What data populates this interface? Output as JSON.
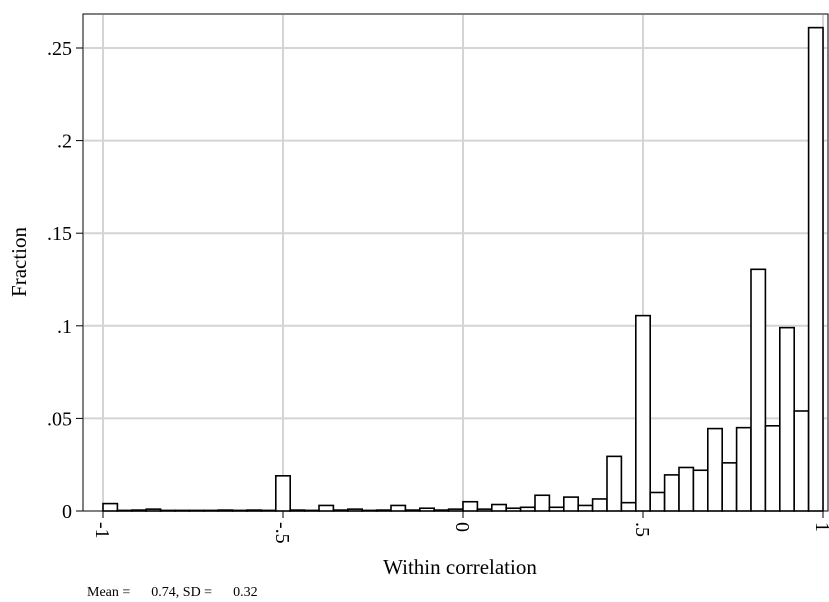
{
  "chart_data": {
    "type": "bar",
    "xlabel": "Within correlation",
    "ylabel": "Fraction",
    "xlim": [
      -1,
      1
    ],
    "ylim": [
      0,
      0.25
    ],
    "x_ticks": [
      {
        "value": -1,
        "label": "-1"
      },
      {
        "value": -0.5,
        "label": "-.5"
      },
      {
        "value": 0,
        "label": "0"
      },
      {
        "value": 0.5,
        "label": ".5"
      },
      {
        "value": 1,
        "label": "1"
      }
    ],
    "y_ticks": [
      {
        "value": 0,
        "label": "0"
      },
      {
        "value": 0.05,
        "label": ".05"
      },
      {
        "value": 0.1,
        "label": ".1"
      },
      {
        "value": 0.15,
        "label": ".15"
      },
      {
        "value": 0.2,
        "label": ".2"
      },
      {
        "value": 0.25,
        "label": ".25"
      }
    ],
    "grid": true,
    "bin_width": 0.04,
    "bins": [
      {
        "x": -0.98,
        "value": 0.004
      },
      {
        "x": -0.94,
        "value": 0.0
      },
      {
        "x": -0.9,
        "value": 0.0005
      },
      {
        "x": -0.86,
        "value": 0.001
      },
      {
        "x": -0.82,
        "value": 0.0003
      },
      {
        "x": -0.78,
        "value": 0.0003
      },
      {
        "x": -0.74,
        "value": 0.0002
      },
      {
        "x": -0.7,
        "value": 0.0003
      },
      {
        "x": -0.66,
        "value": 0.0005
      },
      {
        "x": -0.62,
        "value": 0.0003
      },
      {
        "x": -0.58,
        "value": 0.0005
      },
      {
        "x": -0.54,
        "value": 0.0003
      },
      {
        "x": -0.5,
        "value": 0.019
      },
      {
        "x": -0.46,
        "value": 0.0005
      },
      {
        "x": -0.42,
        "value": 0.0002
      },
      {
        "x": -0.38,
        "value": 0.003
      },
      {
        "x": -0.34,
        "value": 0.0005
      },
      {
        "x": -0.3,
        "value": 0.001
      },
      {
        "x": -0.26,
        "value": 0.0003
      },
      {
        "x": -0.22,
        "value": 0.0005
      },
      {
        "x": -0.18,
        "value": 0.003
      },
      {
        "x": -0.14,
        "value": 0.0005
      },
      {
        "x": -0.1,
        "value": 0.0015
      },
      {
        "x": -0.06,
        "value": 0.0005
      },
      {
        "x": -0.02,
        "value": 0.001
      },
      {
        "x": 0.02,
        "value": 0.005
      },
      {
        "x": 0.06,
        "value": 0.001
      },
      {
        "x": 0.1,
        "value": 0.0035
      },
      {
        "x": 0.14,
        "value": 0.0015
      },
      {
        "x": 0.18,
        "value": 0.002
      },
      {
        "x": 0.22,
        "value": 0.0085
      },
      {
        "x": 0.26,
        "value": 0.002
      },
      {
        "x": 0.3,
        "value": 0.0075
      },
      {
        "x": 0.34,
        "value": 0.003
      },
      {
        "x": 0.38,
        "value": 0.0065
      },
      {
        "x": 0.42,
        "value": 0.0295
      },
      {
        "x": 0.46,
        "value": 0.0045
      },
      {
        "x": 0.5,
        "value": 0.1055
      },
      {
        "x": 0.54,
        "value": 0.01
      },
      {
        "x": 0.58,
        "value": 0.0195
      },
      {
        "x": 0.62,
        "value": 0.0235
      },
      {
        "x": 0.66,
        "value": 0.022
      },
      {
        "x": 0.7,
        "value": 0.0445
      },
      {
        "x": 0.74,
        "value": 0.026
      },
      {
        "x": 0.78,
        "value": 0.045
      },
      {
        "x": 0.82,
        "value": 0.1305
      },
      {
        "x": 0.86,
        "value": 0.046
      },
      {
        "x": 0.9,
        "value": 0.099
      },
      {
        "x": 0.94,
        "value": 0.054
      },
      {
        "x": 0.98,
        "value": 0.261
      }
    ]
  },
  "footnote": {
    "mean_label": "Mean =",
    "mean_value": "0.74",
    "sd_label": ", SD =",
    "sd_value": "0.32"
  }
}
